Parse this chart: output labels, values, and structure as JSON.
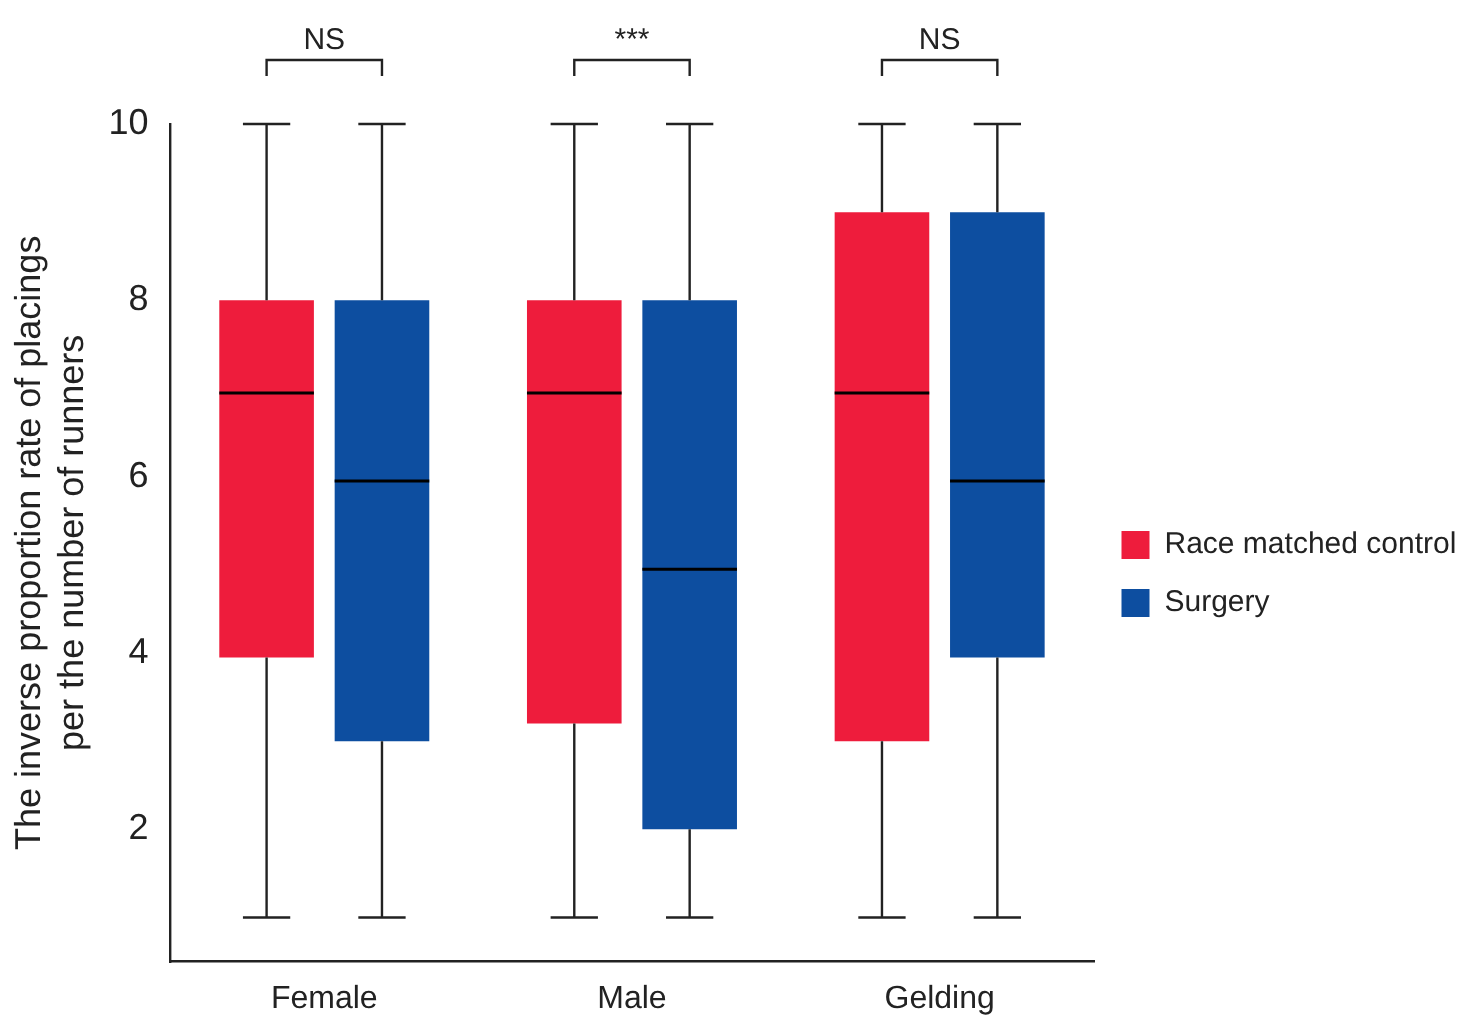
{
  "chart_data": {
    "type": "box",
    "ylabel": "The inverse proportion rate of placings per the number of runners",
    "categories": [
      "Female",
      "Male",
      "Gelding"
    ],
    "series": [
      {
        "name": "Race matched control",
        "color": "#ee1c3c",
        "boxes": [
          {
            "low": 1,
            "q1": 3.95,
            "median": 6.95,
            "q3": 8,
            "high": 10
          },
          {
            "low": 1,
            "q1": 3.2,
            "median": 6.95,
            "q3": 8,
            "high": 10
          },
          {
            "low": 1,
            "q1": 3,
            "median": 6.95,
            "q3": 9,
            "high": 10
          }
        ]
      },
      {
        "name": "Surgery",
        "color": "#0d4ea0",
        "boxes": [
          {
            "low": 1,
            "q1": 3,
            "median": 5.95,
            "q3": 8,
            "high": 10
          },
          {
            "low": 1,
            "q1": 2,
            "median": 4.95,
            "q3": 8,
            "high": 10
          },
          {
            "low": 1,
            "q1": 3.95,
            "median": 5.95,
            "q3": 9,
            "high": 10
          }
        ]
      }
    ],
    "ylim": [
      0.5,
      10
    ],
    "yticks": [
      2,
      4,
      6,
      8,
      10
    ],
    "grid": false,
    "legend": "right",
    "annotations": [
      "NS",
      "***",
      "NS"
    ]
  }
}
